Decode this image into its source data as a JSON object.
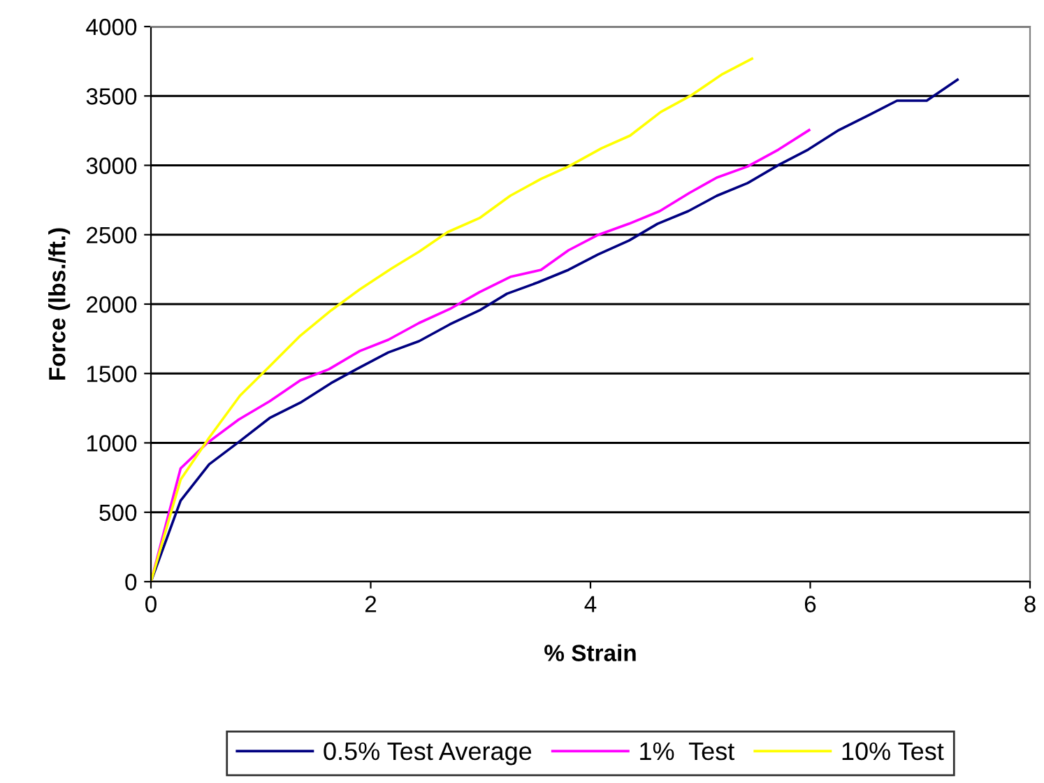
{
  "chart_data": {
    "type": "line",
    "xlabel": "% Strain",
    "ylabel": "Force (lbs./ft.)",
    "xlim": [
      0,
      8
    ],
    "xticks": [
      0,
      2,
      4,
      6,
      8
    ],
    "ylim": [
      0,
      4000
    ],
    "yticks": [
      0,
      500,
      1000,
      1500,
      2000,
      2500,
      3000,
      3500,
      4000
    ],
    "grid": "y",
    "legend": "bottom",
    "marker": "none",
    "line_style": "solid",
    "series": [
      {
        "name": "0.5% Test Average",
        "color": "#000080",
        "x": [
          0,
          0.27,
          0.53,
          0.8,
          1.08,
          1.36,
          1.64,
          1.87,
          2.16,
          2.44,
          2.72,
          2.99,
          3.24,
          3.52,
          3.8,
          4.07,
          4.35,
          4.61,
          4.89,
          5.15,
          5.43,
          5.71,
          5.98,
          6.26,
          6.54,
          6.79,
          7.06,
          7.34
        ],
        "values": [
          0,
          584,
          846,
          1007,
          1179,
          1290,
          1431,
          1531,
          1652,
          1733,
          1854,
          1955,
          2075,
          2156,
          2247,
          2358,
          2458,
          2579,
          2670,
          2781,
          2872,
          3002,
          3113,
          3254,
          3365,
          3466,
          3466,
          3617
        ]
      },
      {
        "name": "1%  Test",
        "color": "#ff00ff",
        "x": [
          0,
          0.27,
          0.51,
          0.8,
          1.08,
          1.36,
          1.62,
          1.9,
          2.16,
          2.44,
          2.72,
          2.99,
          3.27,
          3.55,
          3.8,
          4.07,
          4.35,
          4.63,
          4.9,
          5.15,
          5.43,
          5.71,
          5.99
        ],
        "values": [
          0,
          816,
          998,
          1169,
          1300,
          1451,
          1531,
          1662,
          1743,
          1864,
          1965,
          2086,
          2196,
          2247,
          2388,
          2499,
          2579,
          2670,
          2801,
          2912,
          2992,
          3113,
          3254
        ]
      },
      {
        "name": "10% Test",
        "color": "#ffff00",
        "x": [
          0,
          0.27,
          0.53,
          0.81,
          1.08,
          1.36,
          1.64,
          1.9,
          2.19,
          2.44,
          2.7,
          2.99,
          3.27,
          3.55,
          3.8,
          4.1,
          4.36,
          4.64,
          4.92,
          5.2,
          5.47
        ],
        "values": [
          0,
          736,
          1038,
          1340,
          1552,
          1773,
          1955,
          2106,
          2257,
          2378,
          2519,
          2620,
          2781,
          2902,
          2992,
          3123,
          3214,
          3385,
          3506,
          3657,
          3768
        ]
      }
    ]
  }
}
